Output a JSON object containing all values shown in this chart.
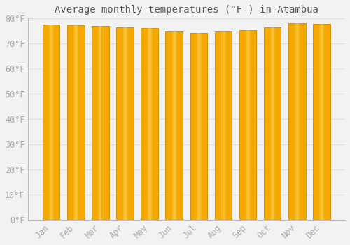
{
  "title": "Average monthly temperatures (°F ) in Atambua",
  "months": [
    "Jan",
    "Feb",
    "Mar",
    "Apr",
    "May",
    "Jun",
    "Jul",
    "Aug",
    "Sep",
    "Oct",
    "Nov",
    "Dec"
  ],
  "values": [
    77.5,
    77.2,
    77.0,
    76.6,
    76.1,
    74.8,
    74.1,
    74.8,
    75.4,
    76.5,
    78.1,
    77.9
  ],
  "bar_color": "#F5A800",
  "bar_highlight": "#FFD000",
  "bar_edge_color": "#CC8800",
  "background_color": "#F2F2F2",
  "grid_color": "#DDDDDD",
  "text_color": "#AAAAAA",
  "title_color": "#555555",
  "ylim": [
    0,
    80
  ],
  "yticks": [
    0,
    10,
    20,
    30,
    40,
    50,
    60,
    70,
    80
  ],
  "title_fontsize": 10,
  "tick_fontsize": 8.5,
  "bar_width": 0.7
}
